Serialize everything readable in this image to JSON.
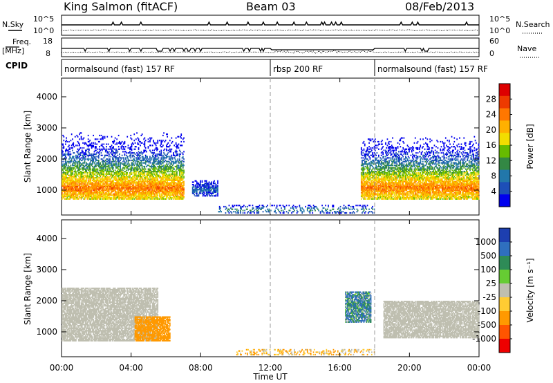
{
  "header": {
    "station": "King Salmon (fitACF)",
    "beam": "Beam 03",
    "date": "08/Feb/2013"
  },
  "status_panels": {
    "nsky_label": "N.Sky",
    "nsearch_label": "N.Search",
    "freq_label_line1": "Freq.",
    "freq_label_line2": "[MHz]",
    "nave_label": "Nave",
    "cpid_label": "CPID",
    "left_ticks_top": [
      "10^5",
      "10^0"
    ],
    "right_ticks_top": [
      "10^5",
      "10^0"
    ],
    "left_ticks_freq": [
      "18",
      "8"
    ],
    "right_ticks_nave": [
      "60",
      "0"
    ]
  },
  "cpid_segments": [
    {
      "label": "normalsound (fast) 157 RF",
      "start_hour": 0,
      "end_hour": 12
    },
    {
      "label": "rbsp 200 RF",
      "start_hour": 12,
      "end_hour": 18
    },
    {
      "label": "normalsound (fast) 157 RF",
      "start_hour": 18,
      "end_hour": 24
    }
  ],
  "power_colorbar": {
    "title": "Power [dB]",
    "ticks": [
      "28",
      "24",
      "20",
      "16",
      "12",
      "8",
      "4"
    ],
    "colors": [
      "#dd0000",
      "#ee3a00",
      "#ff7700",
      "#ffb000",
      "#f2dd00",
      "#66bb00",
      "#338844",
      "#2277aa",
      "#1d4fb8",
      "#0000ee"
    ]
  },
  "velocity_colorbar": {
    "title": "Velocity [m s⁻¹]",
    "ticks": [
      "1000",
      "500",
      "100",
      "25",
      "-25",
      "-100",
      "-500",
      "-1000"
    ],
    "colors": [
      "#1d3fb0",
      "#2f6fbf",
      "#2e8b57",
      "#66cc33",
      "#bfbfb0",
      "#ffcc33",
      "#ff9900",
      "#ff5500",
      "#ee0000"
    ]
  },
  "chart_data": [
    {
      "type": "heatmap",
      "name": "power",
      "ylabel": "Slant Range [km]",
      "yticks": [
        "1000",
        "2000",
        "3000",
        "4000"
      ],
      "ylim": [
        200,
        4600
      ],
      "xlim": [
        0,
        24
      ],
      "dashed_lines_hours": [
        12,
        18
      ],
      "echo_regions": [
        {
          "t_start": 0.0,
          "t_end": 7.0,
          "range_low": 700,
          "range_high": 2900,
          "core_range": 1050,
          "peak_db": 24
        },
        {
          "t_start": 7.5,
          "t_end": 9.0,
          "range_low": 800,
          "range_high": 1300,
          "core_range": 1000,
          "peak_db": 8
        },
        {
          "t_start": 17.2,
          "t_end": 24.0,
          "range_low": 700,
          "range_high": 2800,
          "core_range": 1050,
          "peak_db": 24
        },
        {
          "t_start": 9.0,
          "t_end": 18.0,
          "range_low": 250,
          "range_high": 500,
          "core_range": 350,
          "peak_db": 12
        }
      ]
    },
    {
      "type": "heatmap",
      "name": "velocity",
      "ylabel": "Slant Range [km]",
      "yticks": [
        "1000",
        "2000",
        "3000",
        "4000"
      ],
      "ylim": [
        200,
        4600
      ],
      "xlim": [
        0,
        24
      ],
      "dashed_lines_hours": [
        12,
        18
      ],
      "echo_regions": [
        {
          "t_start": 0.0,
          "t_end": 5.5,
          "range_low": 700,
          "range_high": 2400,
          "velocity": 0
        },
        {
          "t_start": 4.2,
          "t_end": 6.2,
          "range_low": 700,
          "range_high": 1500,
          "velocity": -300
        },
        {
          "t_start": 16.3,
          "t_end": 17.8,
          "range_low": 1300,
          "range_high": 2300,
          "velocity": 100
        },
        {
          "t_start": 18.5,
          "t_end": 24.0,
          "range_low": 800,
          "range_high": 2000,
          "velocity": 0
        },
        {
          "t_start": 10.0,
          "t_end": 18.0,
          "range_low": 250,
          "range_high": 450,
          "velocity": -80
        }
      ]
    }
  ],
  "x_axis": {
    "title": "Time UT",
    "ticks": [
      "00:00",
      "04:00",
      "08:00",
      "12:00",
      "16:00",
      "20:00",
      "00:00"
    ],
    "tick_hours": [
      0,
      4,
      8,
      12,
      16,
      20,
      24
    ]
  }
}
